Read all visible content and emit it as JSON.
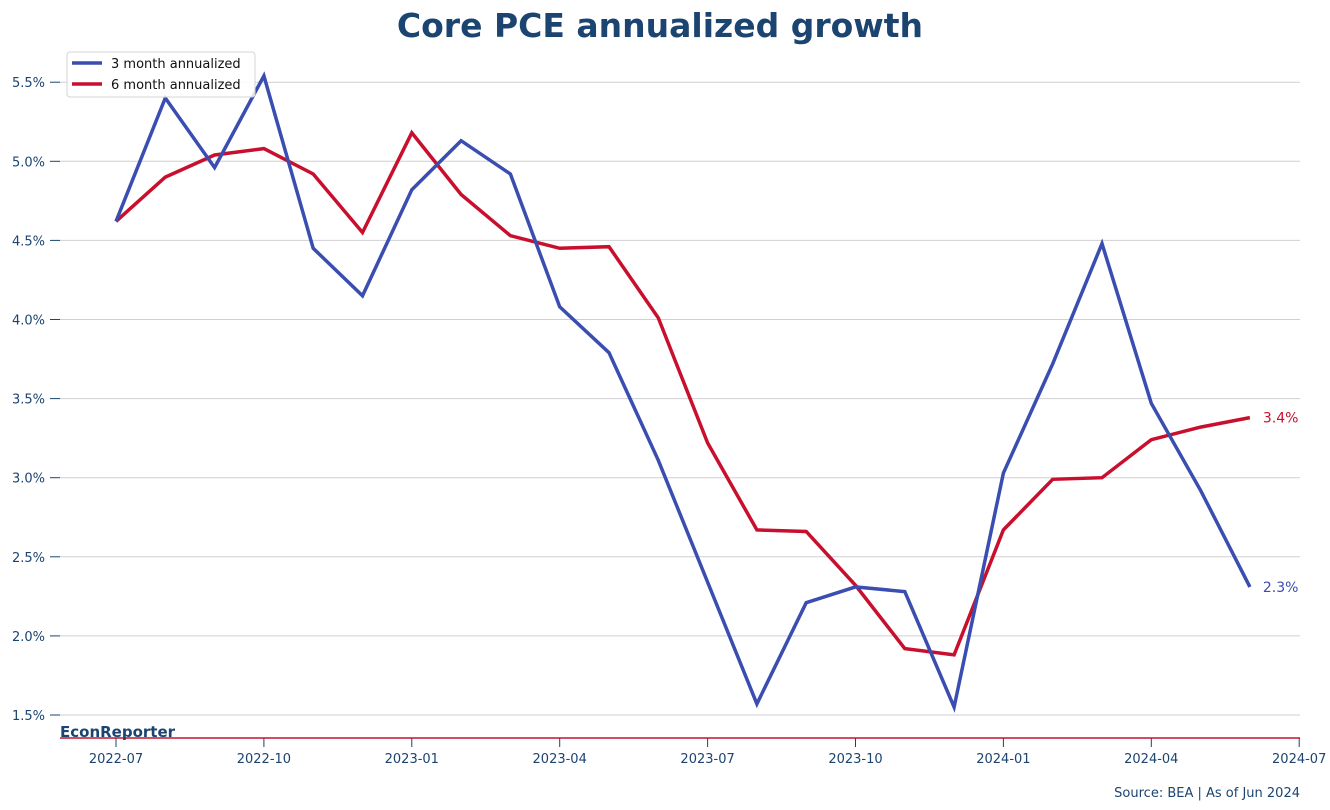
{
  "chart_data": {
    "type": "line",
    "title": "Core PCE annualized growth",
    "xlabel": "",
    "ylabel": "",
    "ylim": [
      1.35,
      5.7
    ],
    "yticks": [
      1.5,
      2.0,
      2.5,
      3.0,
      3.5,
      4.0,
      4.5,
      5.0,
      5.5
    ],
    "ytick_labels": [
      "1.5%",
      "2.0%",
      "2.5%",
      "3.0%",
      "3.5%",
      "4.0%",
      "4.5%",
      "5.0%",
      "5.5%"
    ],
    "xticks": [
      "2022-07",
      "2022-10",
      "2023-01",
      "2023-04",
      "2023-07",
      "2023-10",
      "2024-01",
      "2024-04",
      "2024-07"
    ],
    "x": [
      "2022-07",
      "2022-08",
      "2022-09",
      "2022-10",
      "2022-11",
      "2022-12",
      "2023-01",
      "2023-02",
      "2023-03",
      "2023-04",
      "2023-05",
      "2023-06",
      "2023-07",
      "2023-08",
      "2023-09",
      "2023-10",
      "2023-11",
      "2023-12",
      "2024-01",
      "2024-02",
      "2024-03",
      "2024-04",
      "2024-05",
      "2024-06"
    ],
    "grid": "horizontal",
    "legend_position": "top-left",
    "series": [
      {
        "name": "3 month annualized",
        "color": "#3a4db0",
        "values": [
          4.62,
          5.4,
          4.96,
          5.54,
          4.45,
          4.15,
          4.82,
          5.13,
          4.92,
          4.08,
          3.79,
          3.11,
          2.34,
          1.57,
          2.21,
          2.31,
          2.28,
          1.55,
          3.03,
          3.72,
          4.48,
          3.47,
          2.92,
          2.31
        ],
        "end_label": "2.3%"
      },
      {
        "name": "6 month annualized",
        "color": "#c8102e",
        "values": [
          4.62,
          4.9,
          5.04,
          5.08,
          4.92,
          4.55,
          5.18,
          4.79,
          4.53,
          4.45,
          4.46,
          4.01,
          3.22,
          2.67,
          2.66,
          2.32,
          1.92,
          1.88,
          2.67,
          2.99,
          3.0,
          3.24,
          3.32,
          3.38
        ],
        "end_label": "3.4%"
      }
    ],
    "brand": "EconReporter",
    "source": "Source: BEA | As of Jun 2024",
    "baseline_color": "#c8102e"
  }
}
